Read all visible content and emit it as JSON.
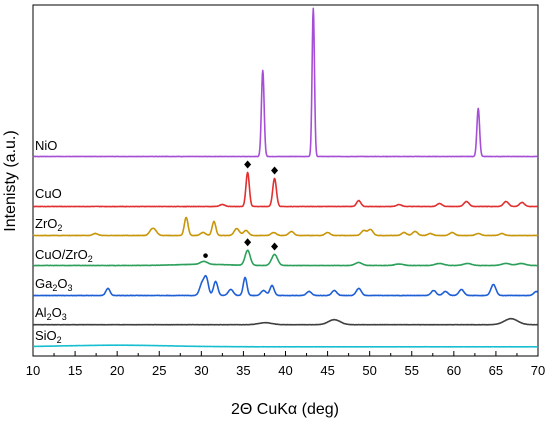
{
  "chart_data": {
    "type": "line",
    "xlabel": "2Θ CuKα (deg)",
    "ylabel": "Intenisty (a.u.)",
    "xlim": [
      10,
      70
    ],
    "xticks": [
      "10",
      "15",
      "20",
      "25",
      "30",
      "35",
      "40",
      "45",
      "50",
      "55",
      "60",
      "65",
      "70"
    ],
    "yticks": "none",
    "grid": false,
    "legend": "none",
    "series": [
      {
        "name": "SiO2",
        "label_main": "SiO",
        "label_sub": "2",
        "color": "#17becf",
        "baseline": 0.2,
        "noise": 0.15,
        "humps": [
          {
            "x": 20,
            "h": 1.6,
            "w": 6
          }
        ],
        "peaks": []
      },
      {
        "name": "Al2O3",
        "label_main": "Al",
        "label_sub": "2",
        "label_tail": "O",
        "label_sub2": "3",
        "color": "#404040",
        "baseline": 0.3,
        "noise": 0.25,
        "humps": [],
        "peaks": [
          {
            "x": 37.6,
            "h": 2,
            "w": 0.8
          },
          {
            "x": 45.8,
            "h": 5,
            "w": 0.7
          },
          {
            "x": 66.8,
            "h": 6,
            "w": 0.8
          }
        ]
      },
      {
        "name": "Ga2O3",
        "label_main": "Ga",
        "label_sub": "2",
        "label_tail": "O",
        "label_sub2": "3",
        "color": "#1f5fd6",
        "baseline": 0.5,
        "noise": 0.4,
        "humps": [],
        "peaks": [
          {
            "x": 18.9,
            "h": 7,
            "w": 0.25
          },
          {
            "x": 30.1,
            "h": 12,
            "w": 0.3
          },
          {
            "x": 30.6,
            "h": 16,
            "w": 0.25
          },
          {
            "x": 31.7,
            "h": 14,
            "w": 0.25
          },
          {
            "x": 33.5,
            "h": 6,
            "w": 0.3
          },
          {
            "x": 35.2,
            "h": 18,
            "w": 0.22
          },
          {
            "x": 37.4,
            "h": 5,
            "w": 0.3
          },
          {
            "x": 38.4,
            "h": 10,
            "w": 0.25
          },
          {
            "x": 42.8,
            "h": 4,
            "w": 0.3
          },
          {
            "x": 45.8,
            "h": 5,
            "w": 0.3
          },
          {
            "x": 48.7,
            "h": 7,
            "w": 0.3
          },
          {
            "x": 57.6,
            "h": 5,
            "w": 0.3
          },
          {
            "x": 59.0,
            "h": 4,
            "w": 0.3
          },
          {
            "x": 60.9,
            "h": 6,
            "w": 0.3
          },
          {
            "x": 64.7,
            "h": 11,
            "w": 0.3
          },
          {
            "x": 69.8,
            "h": 4,
            "w": 0.3
          }
        ]
      },
      {
        "name": "CuO/ZrO2",
        "label_main": "CuO/ZrO",
        "label_sub": "2",
        "color": "#2ca05a",
        "baseline": 0.5,
        "noise": 0.35,
        "humps": [
          {
            "x": 30,
            "h": 1.2,
            "w": 3
          }
        ],
        "peaks": [
          {
            "x": 30.3,
            "h": 3,
            "w": 0.4
          },
          {
            "x": 35.5,
            "h": 15,
            "w": 0.3
          },
          {
            "x": 38.7,
            "h": 11,
            "w": 0.35
          },
          {
            "x": 48.7,
            "h": 3,
            "w": 0.4
          },
          {
            "x": 53.5,
            "h": 1.5,
            "w": 0.5
          },
          {
            "x": 58.3,
            "h": 2,
            "w": 0.5
          },
          {
            "x": 61.6,
            "h": 2,
            "w": 0.5
          },
          {
            "x": 66.2,
            "h": 2,
            "w": 0.5
          },
          {
            "x": 68.0,
            "h": 2,
            "w": 0.5
          }
        ]
      },
      {
        "name": "ZrO2",
        "label_main": "ZrO",
        "label_sub": "2",
        "color": "#c8960a",
        "baseline": 0.5,
        "noise": 0.35,
        "humps": [],
        "peaks": [
          {
            "x": 17.4,
            "h": 2,
            "w": 0.3
          },
          {
            "x": 24.1,
            "h": 5,
            "w": 0.3
          },
          {
            "x": 24.5,
            "h": 4,
            "w": 0.3
          },
          {
            "x": 28.2,
            "h": 18,
            "w": 0.22
          },
          {
            "x": 30.2,
            "h": 3,
            "w": 0.3
          },
          {
            "x": 31.5,
            "h": 14,
            "w": 0.22
          },
          {
            "x": 34.2,
            "h": 7,
            "w": 0.3
          },
          {
            "x": 35.3,
            "h": 5,
            "w": 0.3
          },
          {
            "x": 38.6,
            "h": 3,
            "w": 0.3
          },
          {
            "x": 40.7,
            "h": 4,
            "w": 0.3
          },
          {
            "x": 45.0,
            "h": 3,
            "w": 0.3
          },
          {
            "x": 49.3,
            "h": 5,
            "w": 0.3
          },
          {
            "x": 50.1,
            "h": 6,
            "w": 0.3
          },
          {
            "x": 54.1,
            "h": 3,
            "w": 0.3
          },
          {
            "x": 55.4,
            "h": 4,
            "w": 0.3
          },
          {
            "x": 57.2,
            "h": 2,
            "w": 0.3
          },
          {
            "x": 59.8,
            "h": 3,
            "w": 0.3
          },
          {
            "x": 62.9,
            "h": 2,
            "w": 0.3
          },
          {
            "x": 65.7,
            "h": 2,
            "w": 0.3
          }
        ]
      },
      {
        "name": "CuO",
        "label_main": "CuO",
        "color": "#e03030",
        "baseline": 0.5,
        "noise": 0.35,
        "humps": [],
        "peaks": [
          {
            "x": 32.5,
            "h": 2,
            "w": 0.3
          },
          {
            "x": 35.5,
            "h": 34,
            "w": 0.2
          },
          {
            "x": 38.7,
            "h": 28,
            "w": 0.22
          },
          {
            "x": 48.7,
            "h": 6,
            "w": 0.25
          },
          {
            "x": 53.5,
            "h": 2,
            "w": 0.3
          },
          {
            "x": 58.3,
            "h": 3,
            "w": 0.3
          },
          {
            "x": 61.5,
            "h": 5,
            "w": 0.3
          },
          {
            "x": 66.2,
            "h": 5,
            "w": 0.3
          },
          {
            "x": 68.1,
            "h": 4,
            "w": 0.3
          }
        ]
      },
      {
        "name": "NiO",
        "label_main": "NiO",
        "color": "#a64fd6",
        "baseline": 0.5,
        "noise": 0.3,
        "humps": [],
        "peaks": [
          {
            "x": 37.3,
            "h": 86,
            "w": 0.16
          },
          {
            "x": 43.3,
            "h": 148,
            "w": 0.14
          },
          {
            "x": 62.9,
            "h": 48,
            "w": 0.16
          }
        ]
      }
    ],
    "markers": [
      {
        "series": "CuO",
        "x": 35.5,
        "symbol": "diamond"
      },
      {
        "series": "CuO",
        "x": 38.7,
        "symbol": "diamond"
      },
      {
        "series": "CuO/ZrO2",
        "x": 35.5,
        "symbol": "diamond"
      },
      {
        "series": "CuO/ZrO2",
        "x": 38.7,
        "symbol": "diamond"
      },
      {
        "series": "CuO/ZrO2",
        "x": 30.5,
        "symbol": "dot"
      }
    ]
  }
}
